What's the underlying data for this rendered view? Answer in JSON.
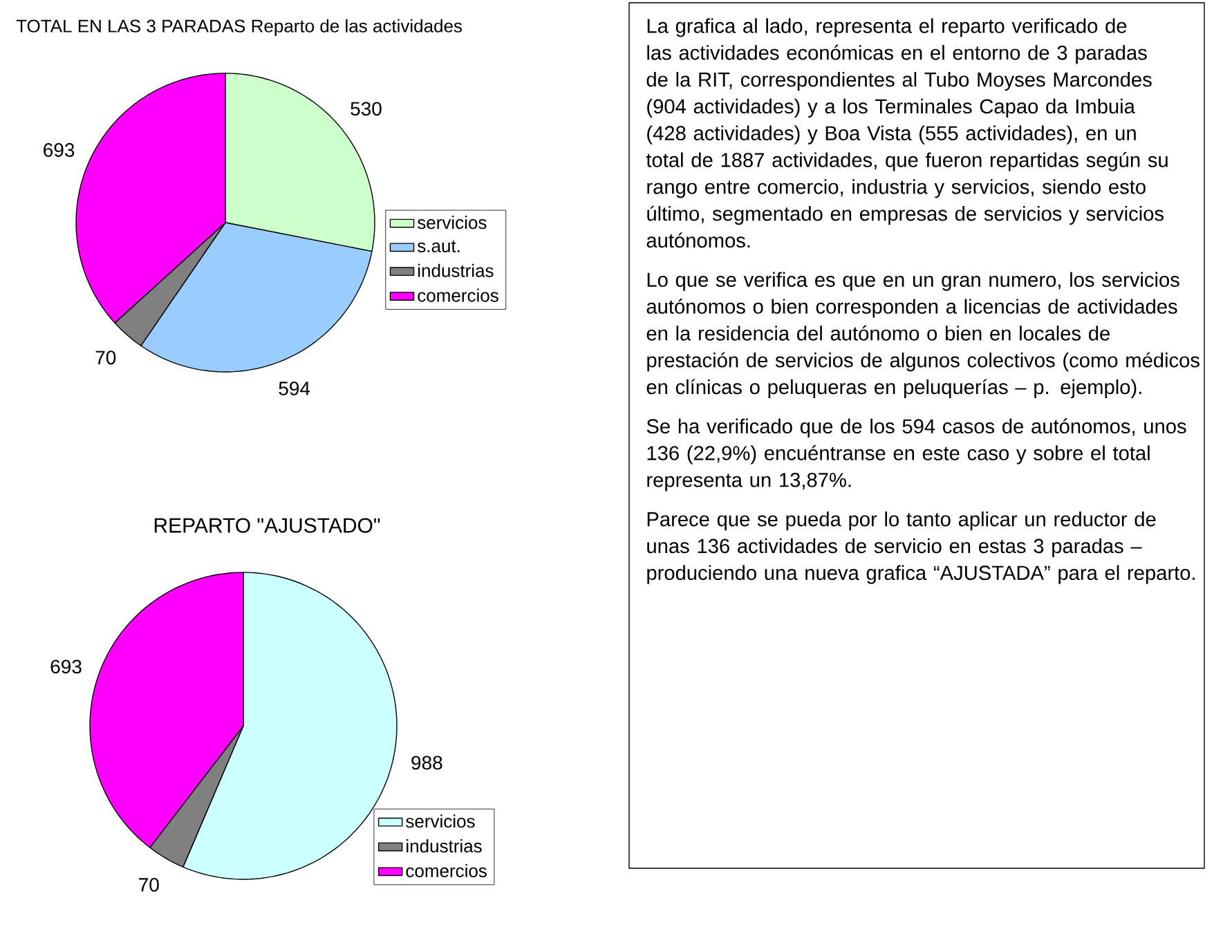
{
  "chart_data": [
    {
      "type": "pie",
      "title": "TOTAL EN LAS 3 PARADAS Reparto de las actividades",
      "categories": [
        "servicios",
        "s.aut.",
        "industrias",
        "comercios"
      ],
      "values": [
        530,
        594,
        70,
        693
      ],
      "colors": [
        "#ccffcc",
        "#99ccff",
        "#808080",
        "#ff00ff"
      ],
      "data_labels": true,
      "legend": "right"
    },
    {
      "type": "pie",
      "title": "REPARTO \"AJUSTADO\"",
      "categories": [
        "servicios",
        "industrias",
        "comercios"
      ],
      "values": [
        988,
        70,
        693
      ],
      "colors": [
        "#ccffff",
        "#808080",
        "#ff00ff"
      ],
      "data_labels": true,
      "legend": "bottom right"
    },
    {
      "type": "other",
      "annotations": [
        "La grafica al lado, representa el reparto verificado de las actividades económicas en el entorno de 3 paradas de la RIT, correspondientes al Tubo Moyses Marcondes (904 actividades) y a los Terminales Capao da Imbuia (428 actividades) y Boa Vista (555 actividades), en un total de 1887 actividades, que fueron repartidas según su rango entre comercio, industria y servicios, siendo esto último, segmentado en empresas de servicios y servicios autónomos.",
        "Lo que se verifica es que en un gran numero, los servicios autónomos o bien corresponden a licencias de actividades en la residencia del autónomo o bien en locales de prestación de servicios de algunos colectivos (como médicos en clínicas o peluqueras en peluquerías – p. ejemplo).",
        "Se ha verificado que de los 594 casos de autónomos, unos 136 (22,9%) encuéntranse en este caso y sobre el total representa un 13,87%.",
        "Parece que se pueda por lo tanto aplicar un reductor de unas 136 actividades de servicio en estas 3 paradas – produciendo una nueva grafica “AJUSTADA” para el reparto."
      ]
    }
  ]
}
